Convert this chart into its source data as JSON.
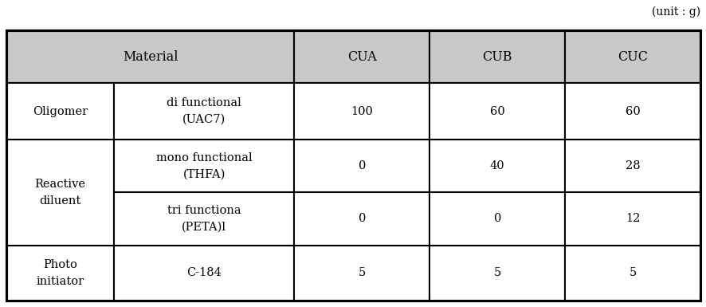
{
  "unit_label": "(unit : g)",
  "header_bg": "#c8c8c8",
  "cell_bg": "#ffffff",
  "border_color": "#000000",
  "col_headers": [
    "CUA",
    "CUB",
    "CUC"
  ],
  "rows": [
    {
      "group": "Oligomer",
      "sub": "di functional\n(UAC7)",
      "values": [
        "100",
        "60",
        "60"
      ],
      "group_span": 1
    },
    {
      "group": "Reactive\ndiluent",
      "sub": "mono functional\n(THFA)",
      "values": [
        "0",
        "40",
        "28"
      ],
      "group_span": 2
    },
    {
      "group": "",
      "sub": "tri functiona\n(PETA)l",
      "values": [
        "0",
        "0",
        "12"
      ],
      "group_span": 0
    },
    {
      "group": "Photo\ninitiator",
      "sub": "C-184",
      "values": [
        "5",
        "5",
        "5"
      ],
      "group_span": 1
    }
  ],
  "font_size": 10.5,
  "font_family": "DejaVu Serif",
  "fig_width": 8.87,
  "fig_height": 3.85,
  "dpi": 100
}
